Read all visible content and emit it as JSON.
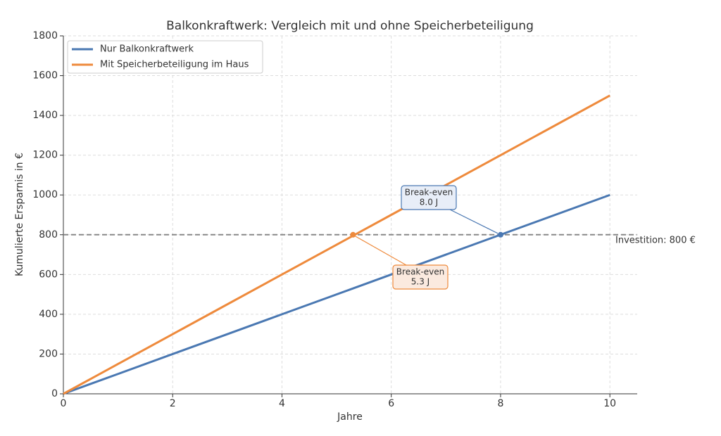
{
  "chart_data": {
    "type": "line",
    "title": "Balkonkraftwerk: Vergleich mit und ohne Speicherbeteiligung",
    "x_label": "Jahre",
    "y_label": "Kumulierte Ersparnis in €",
    "x": [
      0,
      1,
      2,
      3,
      4,
      5,
      6,
      7,
      8,
      9,
      10
    ],
    "series": [
      {
        "name": "Nur Balkonkraftwerk",
        "color": "#4a78b2",
        "values": [
          0,
          100,
          200,
          300,
          400,
          500,
          600,
          700,
          800,
          900,
          1000
        ]
      },
      {
        "name": "Mit Speicherbeteiligung im Haus",
        "color": "#ee8a3c",
        "values": [
          0,
          150,
          300,
          450,
          600,
          750,
          900,
          1050,
          1200,
          1350,
          1500
        ]
      }
    ],
    "hline": {
      "value": 800,
      "label": "Investition: 800 €",
      "color": "#888888"
    },
    "annotations": [
      {
        "lines": [
          "Break-even",
          "8.0 J"
        ],
        "x": 8.0,
        "y": 800,
        "series": 0
      },
      {
        "lines": [
          "Break-even",
          "5.3 J"
        ],
        "x": 5.3,
        "y": 800,
        "series": 1
      }
    ],
    "xlim": [
      0,
      10.5
    ],
    "ylim": [
      0,
      1800
    ],
    "xticks": [
      0,
      2,
      4,
      6,
      8,
      10
    ],
    "yticks": [
      0,
      200,
      400,
      600,
      800,
      1000,
      1200,
      1400,
      1600,
      1800
    ],
    "grid": true,
    "legend": "upper left"
  }
}
